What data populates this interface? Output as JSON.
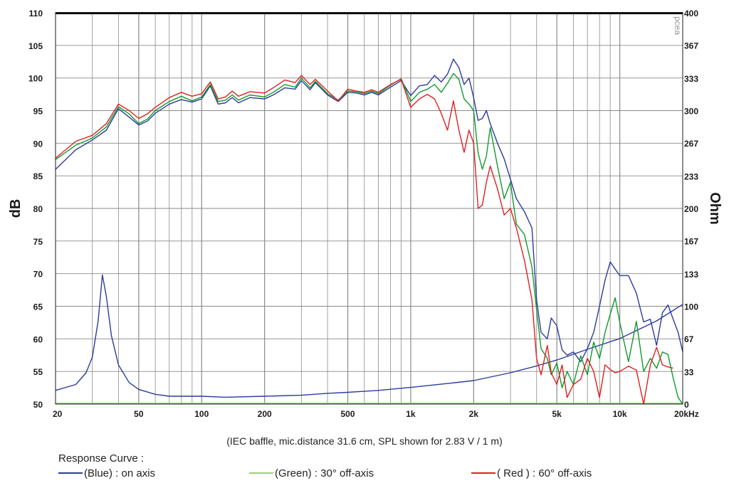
{
  "chart_data": {
    "type": "line",
    "x_scale": "log",
    "xlim": [
      20,
      20000
    ],
    "ylim_left": [
      50,
      110
    ],
    "ylim_right": [
      0,
      400
    ],
    "ylabel_left": "dB",
    "ylabel_right": "Ohm",
    "grid": true,
    "x_ticks": [
      {
        "value": 20,
        "label": "20"
      },
      {
        "value": 50,
        "label": "50"
      },
      {
        "value": 100,
        "label": "100"
      },
      {
        "value": 200,
        "label": "200"
      },
      {
        "value": 500,
        "label": "500"
      },
      {
        "value": 1000,
        "label": "1k"
      },
      {
        "value": 2000,
        "label": "2k"
      },
      {
        "value": 5000,
        "label": "5k"
      },
      {
        "value": 10000,
        "label": "10k"
      },
      {
        "value": 20000,
        "label": "20kHz"
      }
    ],
    "y_ticks_left": [
      "50",
      "55",
      "60",
      "65",
      "70",
      "75",
      "80",
      "85",
      "90",
      "95",
      "100",
      "105",
      "110"
    ],
    "y_ticks_right": [
      {
        "value": 0,
        "label": "0"
      },
      {
        "value": 33,
        "label": "33"
      },
      {
        "value": 67,
        "label": "67"
      },
      {
        "value": 100,
        "label": "100"
      },
      {
        "value": 133,
        "label": "133"
      },
      {
        "value": 167,
        "label": "167"
      },
      {
        "value": 200,
        "label": "200"
      },
      {
        "value": 233,
        "label": "233"
      },
      {
        "value": 267,
        "label": "267"
      },
      {
        "value": 300,
        "label": "300"
      },
      {
        "value": 333,
        "label": "333"
      },
      {
        "value": 367,
        "label": "367"
      },
      {
        "value": 400,
        "label": "400"
      }
    ],
    "watermark": "pcea",
    "series": [
      {
        "name": "(Blue) : on axis",
        "axis": "left",
        "color": "#2c3c9c",
        "points": [
          [
            20,
            86
          ],
          [
            25,
            89
          ],
          [
            30,
            90.5
          ],
          [
            35,
            92
          ],
          [
            40,
            95.3
          ],
          [
            45,
            94
          ],
          [
            50,
            92.8
          ],
          [
            55,
            93.4
          ],
          [
            60,
            94.6
          ],
          [
            70,
            96
          ],
          [
            80,
            96.7
          ],
          [
            90,
            96.3
          ],
          [
            100,
            96.8
          ],
          [
            110,
            98.8
          ],
          [
            120,
            96
          ],
          [
            130,
            96.2
          ],
          [
            140,
            97
          ],
          [
            150,
            96.2
          ],
          [
            170,
            97
          ],
          [
            200,
            96.8
          ],
          [
            220,
            97.4
          ],
          [
            250,
            98.5
          ],
          [
            280,
            98.3
          ],
          [
            300,
            99.6
          ],
          [
            330,
            98.2
          ],
          [
            350,
            99.3
          ],
          [
            400,
            97.4
          ],
          [
            450,
            96.4
          ],
          [
            500,
            97.8
          ],
          [
            550,
            97.7
          ],
          [
            600,
            97.4
          ],
          [
            650,
            97.8
          ],
          [
            700,
            97.4
          ],
          [
            800,
            98.6
          ],
          [
            900,
            99.6
          ],
          [
            1000,
            97.3
          ],
          [
            1100,
            98.8
          ],
          [
            1200,
            99
          ],
          [
            1300,
            100.4
          ],
          [
            1400,
            99.4
          ],
          [
            1500,
            100.6
          ],
          [
            1600,
            102.9
          ],
          [
            1700,
            101.6
          ],
          [
            1800,
            99
          ],
          [
            1900,
            100
          ],
          [
            2000,
            97
          ],
          [
            2100,
            93.5
          ],
          [
            2200,
            93.8
          ],
          [
            2300,
            95
          ],
          [
            2400,
            93
          ],
          [
            2600,
            90
          ],
          [
            2800,
            87.6
          ],
          [
            3000,
            84.5
          ],
          [
            3200,
            81.5
          ],
          [
            3500,
            79.5
          ],
          [
            3800,
            77
          ],
          [
            4000,
            66
          ],
          [
            4200,
            61
          ],
          [
            4500,
            60
          ],
          [
            4700,
            63.2
          ],
          [
            5000,
            62
          ],
          [
            5300,
            58.3
          ],
          [
            5600,
            57.5
          ],
          [
            6000,
            58
          ],
          [
            6500,
            56.5
          ],
          [
            7000,
            58.5
          ],
          [
            7500,
            61
          ],
          [
            8000,
            65
          ],
          [
            8500,
            69
          ],
          [
            9000,
            71.8
          ],
          [
            9500,
            70.7
          ],
          [
            10000,
            69.7
          ],
          [
            11000,
            69.7
          ],
          [
            12000,
            67
          ],
          [
            13000,
            62.6
          ],
          [
            14000,
            63
          ],
          [
            15000,
            59
          ],
          [
            16000,
            64
          ],
          [
            17000,
            65.2
          ],
          [
            18000,
            63
          ],
          [
            19000,
            61
          ],
          [
            20000,
            58
          ]
        ]
      },
      {
        "name": "(Green) : 30° off-axis",
        "axis": "left",
        "color": "#129a2e",
        "points": [
          [
            20,
            87.5
          ],
          [
            25,
            89.7
          ],
          [
            30,
            90.8
          ],
          [
            35,
            92.5
          ],
          [
            40,
            95.6
          ],
          [
            45,
            94.5
          ],
          [
            50,
            93
          ],
          [
            55,
            93.7
          ],
          [
            60,
            95
          ],
          [
            70,
            96.4
          ],
          [
            80,
            97.2
          ],
          [
            90,
            96.5
          ],
          [
            100,
            97.1
          ],
          [
            110,
            99
          ],
          [
            120,
            96.4
          ],
          [
            130,
            96.6
          ],
          [
            140,
            97.4
          ],
          [
            150,
            96.6
          ],
          [
            170,
            97.4
          ],
          [
            200,
            97.1
          ],
          [
            220,
            97.8
          ],
          [
            250,
            99
          ],
          [
            280,
            98.6
          ],
          [
            300,
            100
          ],
          [
            330,
            98.5
          ],
          [
            350,
            99.5
          ],
          [
            400,
            97.6
          ],
          [
            450,
            96.6
          ],
          [
            500,
            98
          ],
          [
            550,
            97.9
          ],
          [
            600,
            97.6
          ],
          [
            650,
            98
          ],
          [
            700,
            97.6
          ],
          [
            800,
            98.9
          ],
          [
            900,
            99.9
          ],
          [
            1000,
            96.4
          ],
          [
            1100,
            97.8
          ],
          [
            1200,
            98.3
          ],
          [
            1300,
            99
          ],
          [
            1400,
            97.8
          ],
          [
            1500,
            99.2
          ],
          [
            1600,
            100.7
          ],
          [
            1700,
            99.8
          ],
          [
            1800,
            96.8
          ],
          [
            1900,
            96
          ],
          [
            2000,
            95
          ],
          [
            2100,
            88.5
          ],
          [
            2200,
            86
          ],
          [
            2300,
            88
          ],
          [
            2400,
            92.4
          ],
          [
            2600,
            86.5
          ],
          [
            2800,
            81.5
          ],
          [
            3000,
            84
          ],
          [
            3200,
            77.6
          ],
          [
            3500,
            76
          ],
          [
            3800,
            71
          ],
          [
            4000,
            64.5
          ],
          [
            4200,
            58.5
          ],
          [
            4500,
            57
          ],
          [
            4700,
            54.5
          ],
          [
            5000,
            56.3
          ],
          [
            5300,
            52.5
          ],
          [
            5600,
            55
          ],
          [
            6000,
            53
          ],
          [
            6500,
            57.4
          ],
          [
            7000,
            54.5
          ],
          [
            7500,
            59.5
          ],
          [
            8000,
            57
          ],
          [
            8500,
            61
          ],
          [
            9000,
            63.8
          ],
          [
            9500,
            66.3
          ],
          [
            10000,
            62.5
          ],
          [
            11000,
            56.5
          ],
          [
            12000,
            62.7
          ],
          [
            13000,
            55
          ],
          [
            14000,
            57
          ],
          [
            15000,
            55.5
          ],
          [
            16000,
            58
          ],
          [
            17000,
            57.6
          ],
          [
            18000,
            54
          ],
          [
            19000,
            51
          ],
          [
            20000,
            50
          ]
        ]
      },
      {
        "name": "( Red ) : 60° off-axis",
        "axis": "left",
        "color": "#e02020",
        "points": [
          [
            20,
            87.7
          ],
          [
            25,
            90.3
          ],
          [
            30,
            91.2
          ],
          [
            35,
            93
          ],
          [
            40,
            96
          ],
          [
            45,
            95
          ],
          [
            50,
            93.8
          ],
          [
            55,
            94.5
          ],
          [
            60,
            95.5
          ],
          [
            70,
            97
          ],
          [
            80,
            97.8
          ],
          [
            90,
            97.2
          ],
          [
            100,
            97.6
          ],
          [
            110,
            99.4
          ],
          [
            120,
            96.8
          ],
          [
            130,
            97.1
          ],
          [
            140,
            98
          ],
          [
            150,
            97.2
          ],
          [
            170,
            97.9
          ],
          [
            200,
            97.7
          ],
          [
            220,
            98.5
          ],
          [
            250,
            99.7
          ],
          [
            280,
            99.3
          ],
          [
            300,
            100.4
          ],
          [
            330,
            99
          ],
          [
            350,
            99.8
          ],
          [
            400,
            98
          ],
          [
            450,
            96.5
          ],
          [
            500,
            98.3
          ],
          [
            550,
            98
          ],
          [
            600,
            97.8
          ],
          [
            650,
            98.2
          ],
          [
            700,
            97.8
          ],
          [
            800,
            99
          ],
          [
            900,
            99.8
          ],
          [
            1000,
            95.5
          ],
          [
            1100,
            96.8
          ],
          [
            1200,
            97.5
          ],
          [
            1300,
            96.8
          ],
          [
            1400,
            94.6
          ],
          [
            1500,
            92
          ],
          [
            1600,
            96.5
          ],
          [
            1700,
            92
          ],
          [
            1800,
            88.6
          ],
          [
            1900,
            92
          ],
          [
            2000,
            90
          ],
          [
            2100,
            80
          ],
          [
            2200,
            80.5
          ],
          [
            2300,
            84
          ],
          [
            2400,
            86.5
          ],
          [
            2600,
            83
          ],
          [
            2800,
            79
          ],
          [
            3000,
            80
          ],
          [
            3200,
            77
          ],
          [
            3500,
            72
          ],
          [
            3800,
            66
          ],
          [
            4000,
            57
          ],
          [
            4200,
            54.5
          ],
          [
            4500,
            59
          ],
          [
            4700,
            54.8
          ],
          [
            5000,
            53
          ],
          [
            5300,
            56
          ],
          [
            5600,
            51
          ],
          [
            6000,
            53
          ],
          [
            6500,
            53.8
          ],
          [
            7000,
            57
          ],
          [
            7500,
            55
          ],
          [
            8000,
            51
          ],
          [
            8500,
            56
          ],
          [
            9000,
            55.3
          ],
          [
            9500,
            54.8
          ],
          [
            10000,
            55
          ],
          [
            11000,
            55.8
          ],
          [
            12000,
            55.2
          ],
          [
            13000,
            50
          ],
          [
            14000,
            56
          ],
          [
            15000,
            58.7
          ],
          [
            16000,
            56
          ],
          [
            17000,
            55.7
          ],
          [
            18000,
            55.5
          ]
        ]
      },
      {
        "name": "Impedance",
        "axis": "right",
        "color": "#2c3c9c",
        "points": [
          [
            20,
            14
          ],
          [
            25,
            20
          ],
          [
            28,
            32
          ],
          [
            30,
            48
          ],
          [
            32,
            85
          ],
          [
            33.5,
            132
          ],
          [
            35,
            110
          ],
          [
            37,
            70
          ],
          [
            40,
            40
          ],
          [
            45,
            22
          ],
          [
            50,
            15
          ],
          [
            60,
            10
          ],
          [
            70,
            8
          ],
          [
            80,
            8
          ],
          [
            100,
            8
          ],
          [
            130,
            7
          ],
          [
            200,
            8
          ],
          [
            300,
            9
          ],
          [
            400,
            11
          ],
          [
            500,
            12
          ],
          [
            700,
            14
          ],
          [
            1000,
            17
          ],
          [
            1500,
            21
          ],
          [
            2000,
            24
          ],
          [
            3000,
            32
          ],
          [
            4000,
            39
          ],
          [
            5000,
            45
          ],
          [
            7000,
            56
          ],
          [
            10000,
            67
          ],
          [
            15000,
            85
          ],
          [
            20000,
            102
          ]
        ]
      }
    ]
  },
  "footer": {
    "caption": "(IEC baffle, mic.distance 31.6 cm, SPL shown for 2.83 V / 1 m)",
    "legend_title": "Response Curve :",
    "legend_blue": "(Blue)  : on axis",
    "legend_green": "(Green) : 30° off-axis",
    "legend_red": "( Red ) : 60° off-axis"
  },
  "colors": {
    "blue_line": "#2c3c9c",
    "green_line": "#129a2e",
    "red_line": "#e02020",
    "baseline": "#7fd06e",
    "grid": "#8a8a8a"
  }
}
